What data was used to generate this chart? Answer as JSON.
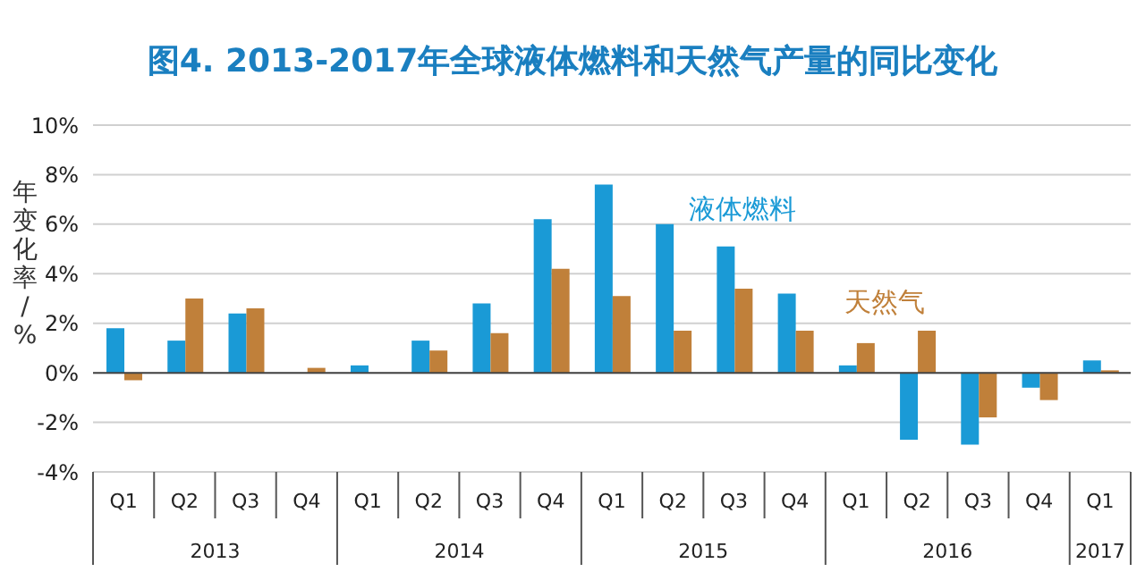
{
  "chart_data": {
    "type": "bar",
    "title": "图4. 2013-2017年全球液体燃料和天然气产量的同比变化",
    "ylabel": "年变化率/%",
    "categories": [
      "Q1",
      "Q2",
      "Q3",
      "Q4",
      "Q1",
      "Q2",
      "Q3",
      "Q4",
      "Q1",
      "Q2",
      "Q3",
      "Q4",
      "Q1",
      "Q2",
      "Q3",
      "Q4",
      "Q1"
    ],
    "annotations": [
      "2013",
      "2014",
      "2015",
      "2016",
      "2017"
    ],
    "series": [
      {
        "name": "液体燃料",
        "color": "#1a9ad6",
        "values": [
          1.8,
          1.3,
          2.4,
          0.0,
          0.3,
          1.3,
          2.8,
          6.2,
          7.6,
          6.0,
          5.1,
          3.2,
          0.3,
          -2.7,
          -2.9,
          -0.6,
          0.5
        ]
      },
      {
        "name": "天然气",
        "color": "#c0803a",
        "values": [
          -0.3,
          3.0,
          2.6,
          0.2,
          0.0,
          0.9,
          1.6,
          4.2,
          3.1,
          1.7,
          3.4,
          1.7,
          1.2,
          1.7,
          -1.8,
          -1.1,
          0.1
        ]
      }
    ],
    "ylim": [
      -4,
      10
    ],
    "yticks": [
      {
        "value": -4,
        "label": "-4%"
      },
      {
        "value": -2,
        "label": "-2%"
      },
      {
        "value": 0,
        "label": "0%"
      },
      {
        "value": 2,
        "label": "2%"
      },
      {
        "value": 4,
        "label": "4%"
      },
      {
        "value": 6,
        "label": "6%"
      },
      {
        "value": 8,
        "label": "8%"
      },
      {
        "value": 10,
        "label": "10%"
      }
    ],
    "grid": "y",
    "legend": false
  }
}
